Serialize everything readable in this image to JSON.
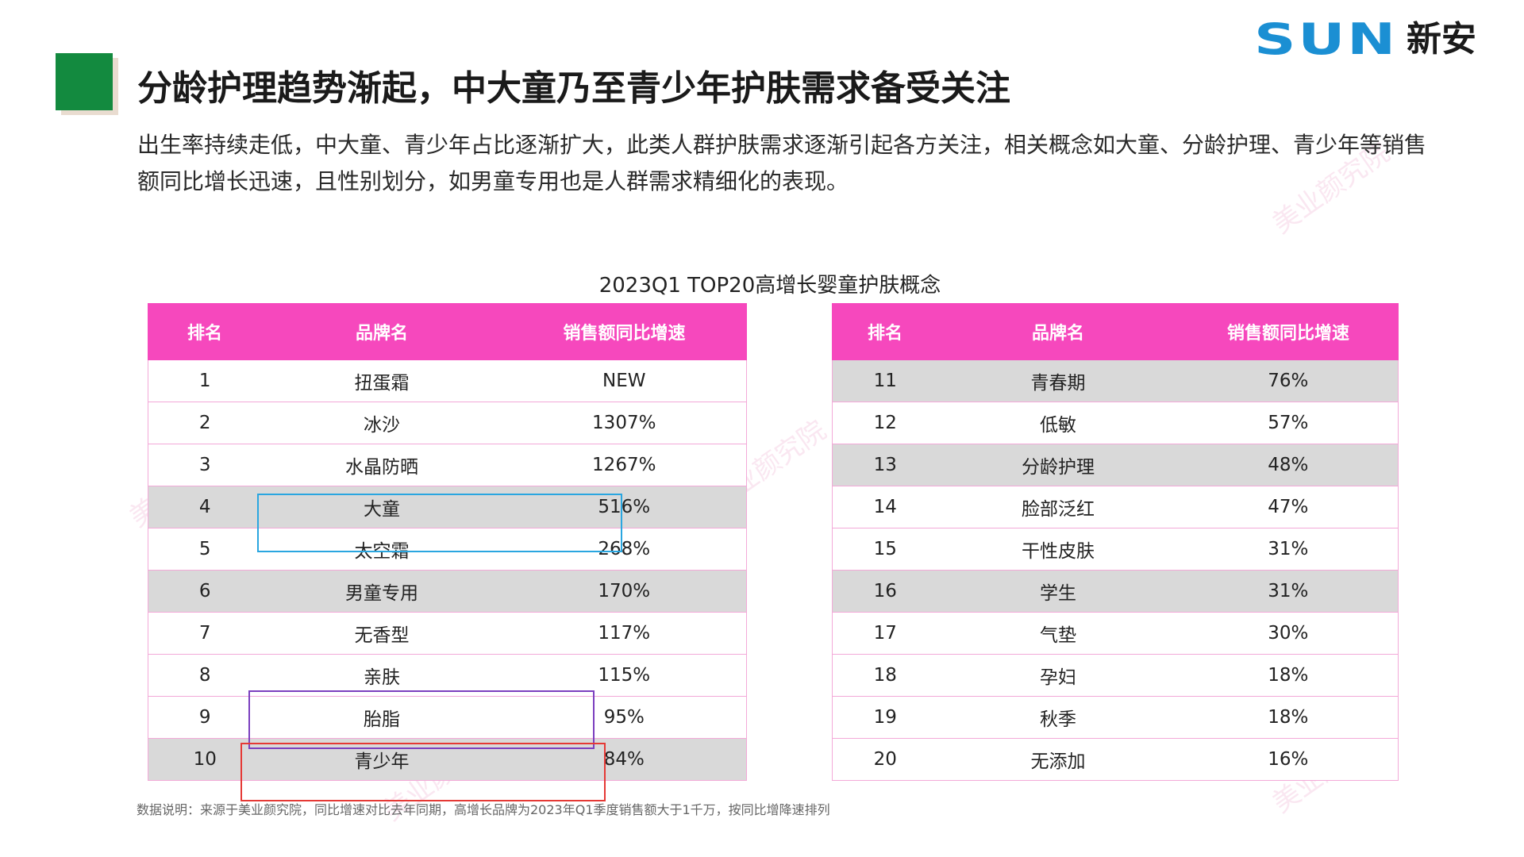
{
  "logo": {
    "text_latin": "SUN",
    "text_cn": "新安",
    "color": "#1b8fd3"
  },
  "title": "分龄护理趋势渐起，中大童乃至青少年护肤需求备受关注",
  "intro": "出生率持续走低，中大童、青少年占比逐渐扩大，此类人群护肤需求逐渐引起各方关注，相关概念如大童、分龄护理、青少年等销售额同比增长迅速，且性别划分，如男童专用也是人群需求精细化的表现。",
  "chart_title": "2023Q1 TOP20高增长婴童护肤概念",
  "table_headers": {
    "rank": "排名",
    "brand": "品牌名",
    "rate": "销售额同比增速"
  },
  "colors": {
    "header_pink": "#f648bd",
    "row_shaded": "#d9d9d9",
    "accent_green": "#138a3f"
  },
  "left_rows": [
    {
      "rank": "1",
      "brand": "扭蛋霜",
      "rate": "NEW",
      "shaded": false
    },
    {
      "rank": "2",
      "brand": "冰沙",
      "rate": "1307%",
      "shaded": false
    },
    {
      "rank": "3",
      "brand": "水晶防晒",
      "rate": "1267%",
      "shaded": false
    },
    {
      "rank": "4",
      "brand": "大童",
      "rate": "516%",
      "shaded": true
    },
    {
      "rank": "5",
      "brand": "太空霜",
      "rate": "268%",
      "shaded": false
    },
    {
      "rank": "6",
      "brand": "男童专用",
      "rate": "170%",
      "shaded": true
    },
    {
      "rank": "7",
      "brand": "无香型",
      "rate": "117%",
      "shaded": false
    },
    {
      "rank": "8",
      "brand": "亲肤",
      "rate": "115%",
      "shaded": false
    },
    {
      "rank": "9",
      "brand": "胎脂",
      "rate": "95%",
      "shaded": false
    },
    {
      "rank": "10",
      "brand": "青少年",
      "rate": "84%",
      "shaded": true
    }
  ],
  "right_rows": [
    {
      "rank": "11",
      "brand": "青春期",
      "rate": "76%",
      "shaded": true
    },
    {
      "rank": "12",
      "brand": "低敏",
      "rate": "57%",
      "shaded": false
    },
    {
      "rank": "13",
      "brand": "分龄护理",
      "rate": "48%",
      "shaded": true
    },
    {
      "rank": "14",
      "brand": "脸部泛红",
      "rate": "47%",
      "shaded": false
    },
    {
      "rank": "15",
      "brand": "干性皮肤",
      "rate": "31%",
      "shaded": false
    },
    {
      "rank": "16",
      "brand": "学生",
      "rate": "31%",
      "shaded": true
    },
    {
      "rank": "17",
      "brand": "气垫",
      "rate": "30%",
      "shaded": false
    },
    {
      "rank": "18",
      "brand": "孕妇",
      "rate": "18%",
      "shaded": false
    },
    {
      "rank": "19",
      "brand": "秋季",
      "rate": "18%",
      "shaded": false
    },
    {
      "rank": "20",
      "brand": "无添加",
      "rate": "16%",
      "shaded": false
    }
  ],
  "footnote": "数据说明：来源于美业颜究院，同比增速对比去年同期，高增长品牌为2023年Q1季度销售额大于1千万，按同比增降速排列",
  "watermark": "美业颜究院"
}
